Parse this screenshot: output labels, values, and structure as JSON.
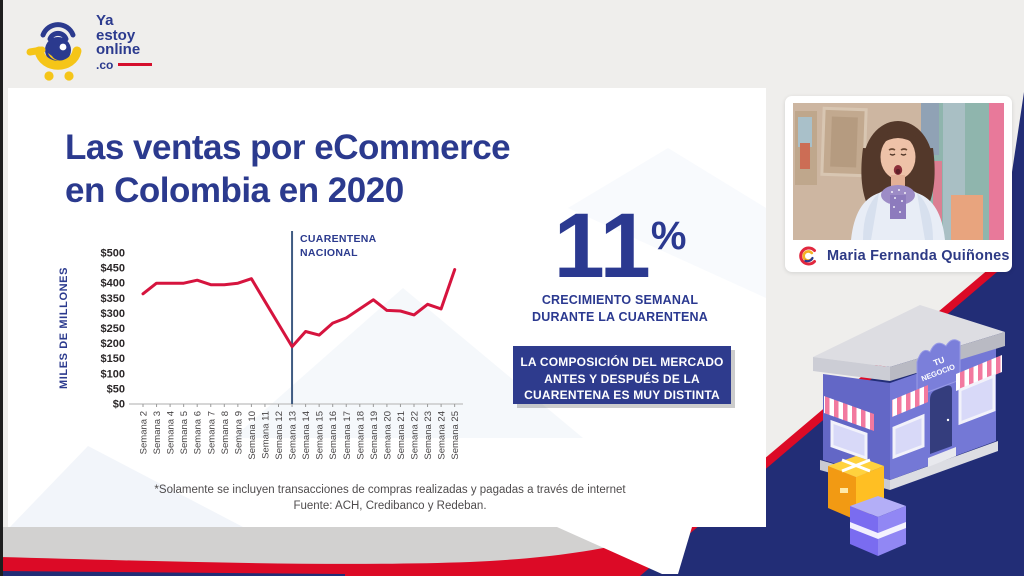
{
  "colors": {
    "accent_navy": "#2b3a8e",
    "stat_blue": "#2b3990",
    "callout_bg": "#2e3b8d",
    "band_red": "#dc0a26",
    "corner_navy": "#222d76",
    "background_gray": "#efeeec",
    "chart_line_red": "#d6143e"
  },
  "logo": {
    "brand_line1": "Ya",
    "brand_line2": "estoy",
    "brand_line3": "online",
    "brand_line4": ".co"
  },
  "slide": {
    "title_line1": "Las ventas por eCommerce",
    "title_line2": "en Colombia en 2020",
    "stat": {
      "value": "11",
      "unit": "%",
      "caption_line1": "CRECIMIENTO SEMANAL",
      "caption_line2": "DURANTE LA CUARENTENA"
    },
    "callout": {
      "line1": "LA COMPOSICIÓN DEL MERCADO",
      "line2": "ANTES Y DESPUÉS DE LA",
      "line3": "CUARENTENA ES MUY DISTINTA"
    },
    "footnote_line1": "*Solamente se incluyen transacciones de compras realizadas y pagadas a través de internet",
    "footnote_line2": "Fuente: ACH, Credibanco y Redeban."
  },
  "chart_data": {
    "type": "line",
    "title": "",
    "categories": [
      "Semana 2",
      "Semana 3",
      "Semana 4",
      "Semana 5",
      "Semana 6",
      "Semana 7",
      "Semana 8",
      "Semana 9",
      "Semana 10",
      "Semana 11",
      "Semana 12",
      "Semana 13",
      "Semana 14",
      "Semana 15",
      "Semana 16",
      "Semana 17",
      "Semana 18",
      "Semana 19",
      "Semana 20",
      "Semana 21",
      "Semana 22",
      "Semana 23",
      "Semana 24",
      "Semana 25"
    ],
    "values": [
      365,
      400,
      400,
      400,
      410,
      395,
      395,
      400,
      415,
      340,
      265,
      190,
      240,
      228,
      268,
      285,
      315,
      345,
      310,
      308,
      295,
      330,
      315,
      445
    ],
    "xlabel": "",
    "ylabel": "MILES DE MILLONES",
    "ylim": [
      0,
      500
    ],
    "y_tick_step": 50,
    "y_tick_labels": [
      "$0",
      "$50",
      "$100",
      "$150",
      "$200",
      "$250",
      "$300",
      "$350",
      "$400",
      "$450",
      "$500"
    ],
    "grid": false,
    "legend": null,
    "line_color": "#d6143e",
    "annotation": {
      "line1": "CUARENTENA",
      "line2": "NACIONAL",
      "at_category": "Semana 13"
    }
  },
  "webcam": {
    "speaker_name": "Maria Fernanda Quiñones"
  },
  "store": {
    "sign_line1": "TU",
    "sign_line2": "NEGOCIO"
  }
}
